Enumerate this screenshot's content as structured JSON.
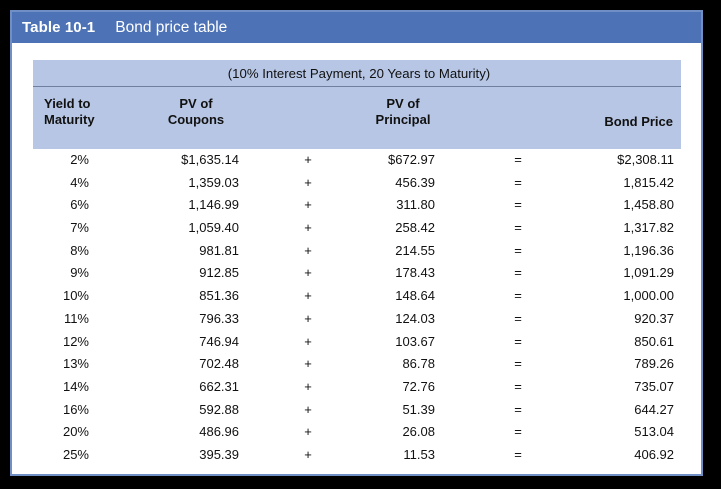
{
  "table": {
    "number": "Table 10-1",
    "title": "Bond price table",
    "subheader": "(10% Interest Payment, 20 Years to Maturity)",
    "columns": {
      "yield": [
        "Yield to",
        "Maturity"
      ],
      "coupons": [
        "PV of",
        "Coupons"
      ],
      "principal": [
        "PV of",
        "Principal"
      ],
      "price": [
        "Bond Price"
      ]
    },
    "operators": {
      "plus": "+",
      "equals": "="
    },
    "rows": [
      {
        "yield": "2%",
        "coupons": "$1,635.14",
        "principal": "$672.97",
        "price": "$2,308.11"
      },
      {
        "yield": "4%",
        "coupons": "1,359.03",
        "principal": "456.39",
        "price": "1,815.42"
      },
      {
        "yield": "6%",
        "coupons": "1,146.99",
        "principal": "311.80",
        "price": "1,458.80"
      },
      {
        "yield": "7%",
        "coupons": "1,059.40",
        "principal": "258.42",
        "price": "1,317.82"
      },
      {
        "yield": "8%",
        "coupons": "981.81",
        "principal": "214.55",
        "price": "1,196.36"
      },
      {
        "yield": "9%",
        "coupons": "912.85",
        "principal": "178.43",
        "price": "1,091.29"
      },
      {
        "yield": "10%",
        "coupons": "851.36",
        "principal": "148.64",
        "price": "1,000.00"
      },
      {
        "yield": "11%",
        "coupons": "796.33",
        "principal": "124.03",
        "price": "920.37"
      },
      {
        "yield": "12%",
        "coupons": "746.94",
        "principal": "103.67",
        "price": "850.61"
      },
      {
        "yield": "13%",
        "coupons": "702.48",
        "principal": "86.78",
        "price": "789.26"
      },
      {
        "yield": "14%",
        "coupons": "662.31",
        "principal": "72.76",
        "price": "735.07"
      },
      {
        "yield": "16%",
        "coupons": "592.88",
        "principal": "51.39",
        "price": "644.27"
      },
      {
        "yield": "20%",
        "coupons": "486.96",
        "principal": "26.08",
        "price": "513.04"
      },
      {
        "yield": "25%",
        "coupons": "395.39",
        "principal": "11.53",
        "price": "406.92"
      }
    ]
  },
  "colors": {
    "title_bar": "#4d72b6",
    "header_fill": "#b7c6e4",
    "frame_border": "#6f8fc5",
    "background": "#000000"
  }
}
